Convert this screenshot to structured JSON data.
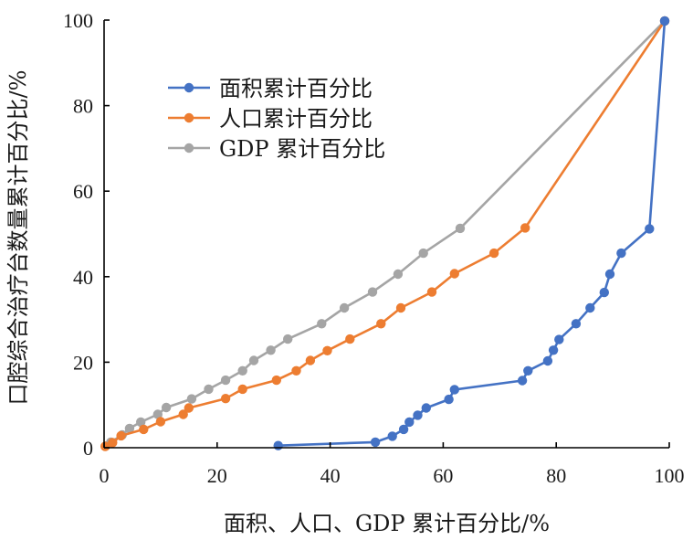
{
  "chart_data": {
    "type": "line",
    "xlabel": "面积、人口、GDP 累计百分比/%",
    "ylabel": "口腔综合治疗台数量累计百分比/%",
    "xlim": [
      0,
      100
    ],
    "ylim": [
      0,
      100
    ],
    "xticks": [
      "0",
      "20",
      "40",
      "60",
      "80",
      "100"
    ],
    "yticks": [
      "0",
      "20",
      "40",
      "60",
      "80",
      "100"
    ],
    "grid": false,
    "legend": "upper-left",
    "series": [
      {
        "name": "面积累计百分比",
        "color": "#4472c4",
        "points": [
          [
            30.8,
            0.5
          ],
          [
            48,
            1.3
          ],
          [
            51,
            2.7
          ],
          [
            53,
            4.3
          ],
          [
            54,
            6
          ],
          [
            55.5,
            7.6
          ],
          [
            57,
            9.3
          ],
          [
            61,
            11.3
          ],
          [
            62,
            13.6
          ],
          [
            74,
            15.7
          ],
          [
            75,
            18
          ],
          [
            78.5,
            20.3
          ],
          [
            79.5,
            22.8
          ],
          [
            80.5,
            25.3
          ],
          [
            83.5,
            29
          ],
          [
            86,
            32.7
          ],
          [
            88.5,
            36.3
          ],
          [
            89.5,
            40.6
          ],
          [
            91.5,
            45.5
          ],
          [
            96.5,
            51.2
          ],
          [
            99.2,
            99.8
          ]
        ]
      },
      {
        "name": "人口累计百分比",
        "color": "#ed7d31",
        "points": [
          [
            0.2,
            0.3
          ],
          [
            1.5,
            1.2
          ],
          [
            3,
            2.8
          ],
          [
            7,
            4.3
          ],
          [
            10,
            6.1
          ],
          [
            14,
            7.8
          ],
          [
            15,
            9.3
          ],
          [
            21.5,
            11.5
          ],
          [
            24.5,
            13.7
          ],
          [
            30.5,
            15.8
          ],
          [
            34,
            18
          ],
          [
            36.5,
            20.4
          ],
          [
            39.5,
            22.7
          ],
          [
            43.5,
            25.4
          ],
          [
            49,
            29
          ],
          [
            52.5,
            32.7
          ],
          [
            58,
            36.4
          ],
          [
            62,
            40.7
          ],
          [
            69,
            45.5
          ],
          [
            74.5,
            51.4
          ],
          [
            99.2,
            99.8
          ]
        ]
      },
      {
        "name": "GDP 累计百分比",
        "color": "#a5a5a5",
        "points": [
          [
            0.3,
            0.4
          ],
          [
            1.2,
            1.3
          ],
          [
            3.2,
            3
          ],
          [
            4.5,
            4.5
          ],
          [
            6.5,
            6
          ],
          [
            9.5,
            7.8
          ],
          [
            11,
            9.4
          ],
          [
            15.5,
            11.4
          ],
          [
            18.5,
            13.7
          ],
          [
            21.5,
            15.8
          ],
          [
            24.5,
            18
          ],
          [
            26.5,
            20.4
          ],
          [
            29.5,
            22.8
          ],
          [
            32.5,
            25.4
          ],
          [
            38.5,
            29
          ],
          [
            42.5,
            32.7
          ],
          [
            47.5,
            36.4
          ],
          [
            52,
            40.6
          ],
          [
            56.5,
            45.5
          ],
          [
            63,
            51.3
          ],
          [
            99.2,
            99.8
          ]
        ]
      }
    ]
  }
}
